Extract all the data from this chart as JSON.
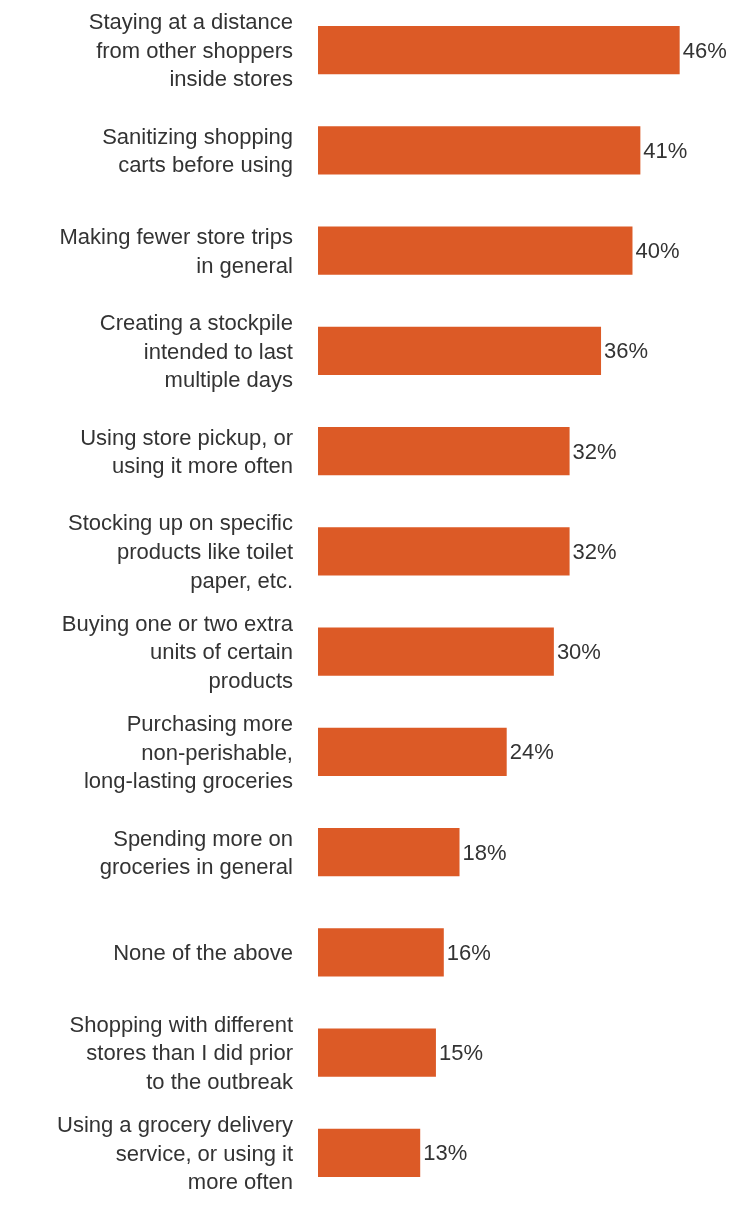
{
  "chart_data": {
    "type": "bar",
    "orientation": "horizontal",
    "color": "#dc5a26",
    "categories": [
      "Staying at a distance from other shoppers inside stores",
      "Sanitizing shopping carts before using",
      "Making fewer store trips in general",
      "Creating a stockpile intended to last multiple days",
      "Using store pickup, or using it more often",
      "Stocking up on specific products like toilet paper, etc.",
      "Buying one or two extra units of certain products",
      "Purchasing more non-perishable, long-lasting groceries",
      "Spending more on groceries in general",
      "None of the above",
      "Shopping with different stores than I did prior to the outbreak",
      "Using a grocery delivery service, or using it more often"
    ],
    "values": [
      46,
      41,
      40,
      36,
      32,
      32,
      30,
      24,
      18,
      16,
      15,
      13
    ],
    "value_labels": [
      "46%",
      "41%",
      "40%",
      "36%",
      "32%",
      "32%",
      "30%",
      "24%",
      "18%",
      "16%",
      "15%",
      "13%"
    ],
    "grid": false,
    "legend": false
  }
}
